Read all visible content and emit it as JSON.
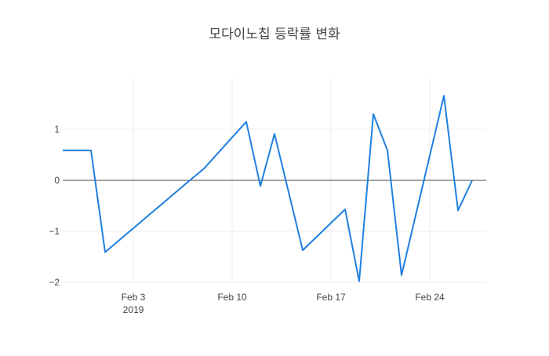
{
  "chart_data": {
    "type": "line",
    "title": "모다이노칩 등락률 변화",
    "xlabel": "",
    "ylabel": "",
    "x_type": "date",
    "xlim": [
      "2019-01-29",
      "2019-02-28"
    ],
    "ylim": [
      -2.0,
      2.0
    ],
    "x_ticks": [
      {
        "value": "2019-02-03",
        "label": "Feb 3",
        "sublabel": "2019"
      },
      {
        "value": "2019-02-10",
        "label": "Feb 10",
        "sublabel": ""
      },
      {
        "value": "2019-02-17",
        "label": "Feb 17",
        "sublabel": ""
      },
      {
        "value": "2019-02-24",
        "label": "Feb 24",
        "sublabel": ""
      }
    ],
    "y_ticks": [
      {
        "value": 1,
        "label": "1"
      },
      {
        "value": 0,
        "label": "0"
      },
      {
        "value": -1,
        "label": "−1"
      },
      {
        "value": -2,
        "label": "−2"
      }
    ],
    "grid": true,
    "zero_line": true,
    "legend": "none",
    "colors": {
      "line": "#1f7fe0",
      "grid": "#eeeeee",
      "zeroline": "#444444",
      "text": "#444444"
    },
    "series": [
      {
        "x": [
          "2019-01-29",
          "2019-01-31",
          "2019-02-01",
          "2019-02-07",
          "2019-02-08",
          "2019-02-11",
          "2019-02-12",
          "2019-02-13",
          "2019-02-15",
          "2019-02-18",
          "2019-02-19",
          "2019-02-20",
          "2019-02-21",
          "2019-02-22",
          "2019-02-25",
          "2019-02-26",
          "2019-02-27"
        ],
        "values": [
          0.59,
          0.59,
          -1.41,
          0.0,
          0.23,
          1.15,
          -0.11,
          0.91,
          -1.37,
          -0.57,
          -1.98,
          1.3,
          0.59,
          -1.86,
          1.66,
          -0.59,
          0.0
        ]
      }
    ]
  }
}
